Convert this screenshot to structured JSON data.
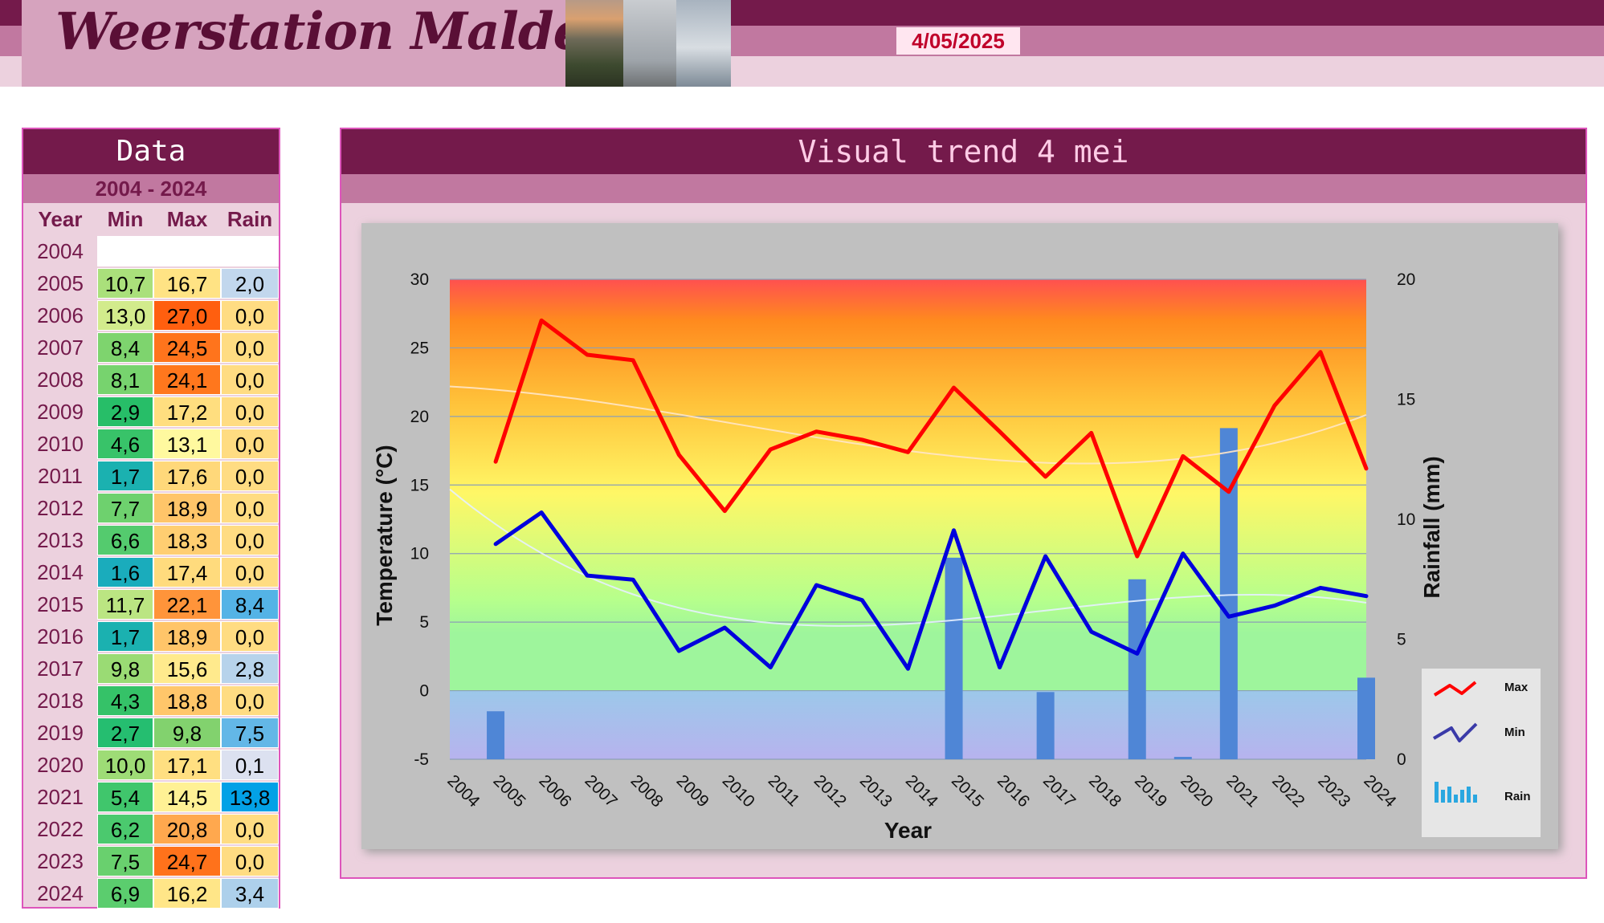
{
  "header": {
    "title": "Weerstation Malderen",
    "date": "4/05/2025"
  },
  "data_panel": {
    "title": "Data",
    "range": "2004 - 2024",
    "columns": [
      "Year",
      "Min",
      "Max",
      "Rain"
    ],
    "rows": [
      {
        "year": "2004",
        "min": "",
        "max": "",
        "rain": ""
      },
      {
        "year": "2005",
        "min": "10,7",
        "max": "16,7",
        "rain": "2,0"
      },
      {
        "year": "2006",
        "min": "13,0",
        "max": "27,0",
        "rain": "0,0"
      },
      {
        "year": "2007",
        "min": "8,4",
        "max": "24,5",
        "rain": "0,0"
      },
      {
        "year": "2008",
        "min": "8,1",
        "max": "24,1",
        "rain": "0,0"
      },
      {
        "year": "2009",
        "min": "2,9",
        "max": "17,2",
        "rain": "0,0"
      },
      {
        "year": "2010",
        "min": "4,6",
        "max": "13,1",
        "rain": "0,0"
      },
      {
        "year": "2011",
        "min": "1,7",
        "max": "17,6",
        "rain": "0,0"
      },
      {
        "year": "2012",
        "min": "7,7",
        "max": "18,9",
        "rain": "0,0"
      },
      {
        "year": "2013",
        "min": "6,6",
        "max": "18,3",
        "rain": "0,0"
      },
      {
        "year": "2014",
        "min": "1,6",
        "max": "17,4",
        "rain": "0,0"
      },
      {
        "year": "2015",
        "min": "11,7",
        "max": "22,1",
        "rain": "8,4"
      },
      {
        "year": "2016",
        "min": "1,7",
        "max": "18,9",
        "rain": "0,0"
      },
      {
        "year": "2017",
        "min": "9,8",
        "max": "15,6",
        "rain": "2,8"
      },
      {
        "year": "2018",
        "min": "4,3",
        "max": "18,8",
        "rain": "0,0"
      },
      {
        "year": "2019",
        "min": "2,7",
        "max": "9,8",
        "rain": "7,5"
      },
      {
        "year": "2020",
        "min": "10,0",
        "max": "17,1",
        "rain": "0,1"
      },
      {
        "year": "2021",
        "min": "5,4",
        "max": "14,5",
        "rain": "13,8"
      },
      {
        "year": "2022",
        "min": "6,2",
        "max": "20,8",
        "rain": "0,0"
      },
      {
        "year": "2023",
        "min": "7,5",
        "max": "24,7",
        "rain": "0,0"
      },
      {
        "year": "2024",
        "min": "6,9",
        "max": "16,2",
        "rain": "3,4"
      }
    ]
  },
  "chart_panel": {
    "title": "Visual trend 4 mei"
  },
  "chart_data": {
    "type": "line",
    "title": "",
    "xlabel": "Year",
    "ylabel": "Temperature (°C)",
    "y2label": "Rainfall (mm)",
    "ylim": [
      -5,
      30
    ],
    "y2lim": [
      0,
      20
    ],
    "yticks": [
      "-5",
      "0",
      "5",
      "10",
      "15",
      "20",
      "25",
      "30"
    ],
    "y2ticks": [
      "0",
      "5",
      "10",
      "15",
      "20"
    ],
    "categories": [
      "2004",
      "2005",
      "2006",
      "2007",
      "2008",
      "2009",
      "2010",
      "2011",
      "2012",
      "2013",
      "2014",
      "2015",
      "2016",
      "2017",
      "2018",
      "2019",
      "2020",
      "2021",
      "2022",
      "2023",
      "2024"
    ],
    "series": [
      {
        "name": "Max",
        "type": "line",
        "axis": "left",
        "color": "#ff0000",
        "values": [
          null,
          16.7,
          27.0,
          24.5,
          24.1,
          17.2,
          13.1,
          17.6,
          18.9,
          18.3,
          17.4,
          22.1,
          18.9,
          15.6,
          18.8,
          9.8,
          17.1,
          14.5,
          20.8,
          24.7,
          16.2
        ]
      },
      {
        "name": "Min",
        "type": "line",
        "axis": "left",
        "color": "#0000dd",
        "values": [
          null,
          10.7,
          13.0,
          8.4,
          8.1,
          2.9,
          4.6,
          1.7,
          7.7,
          6.6,
          1.6,
          11.7,
          1.7,
          9.8,
          4.3,
          2.7,
          10.0,
          5.4,
          6.2,
          7.5,
          6.9
        ]
      },
      {
        "name": "Rain",
        "type": "bar",
        "axis": "right",
        "color": "#4f86d6",
        "values": [
          null,
          2.0,
          0.0,
          0.0,
          0.0,
          0.0,
          0.0,
          0.0,
          0.0,
          0.0,
          0.0,
          8.4,
          0.0,
          2.8,
          0.0,
          7.5,
          0.1,
          13.8,
          0.0,
          0.0,
          3.4
        ]
      }
    ],
    "grid": true,
    "legend": "right",
    "trendlines": true
  }
}
